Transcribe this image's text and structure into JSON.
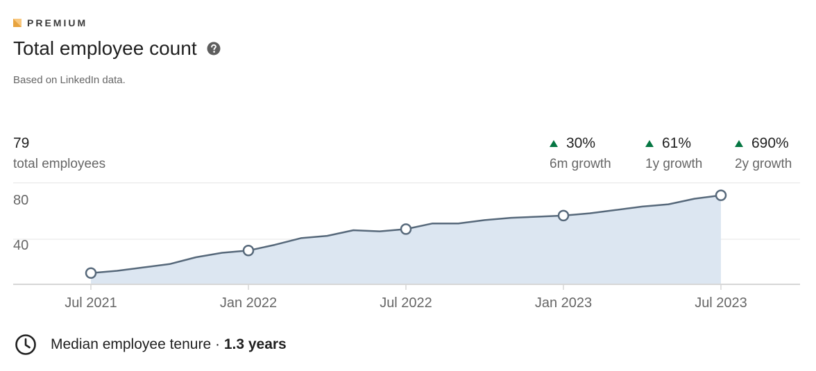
{
  "header": {
    "badge": "PREMIUM",
    "title": "Total employee count",
    "subtitle": "Based on LinkedIn data."
  },
  "summary": {
    "count": "79",
    "count_label": "total employees",
    "growth": [
      {
        "value": "30%",
        "label": "6m growth"
      },
      {
        "value": "61%",
        "label": "1y growth"
      },
      {
        "value": "690%",
        "label": "2y growth"
      }
    ]
  },
  "chart_data": {
    "type": "area",
    "x": [
      "2021-07",
      "2021-08",
      "2021-09",
      "2021-10",
      "2021-11",
      "2021-12",
      "2022-01",
      "2022-02",
      "2022-03",
      "2022-04",
      "2022-05",
      "2022-06",
      "2022-07",
      "2022-08",
      "2022-09",
      "2022-10",
      "2022-11",
      "2022-12",
      "2023-01",
      "2023-02",
      "2023-03",
      "2023-04",
      "2023-05",
      "2023-06",
      "2023-07"
    ],
    "values": [
      10,
      12,
      15,
      18,
      24,
      28,
      30,
      35,
      41,
      43,
      48,
      47,
      49,
      54,
      54,
      57,
      59,
      60,
      61,
      63,
      66,
      69,
      71,
      76,
      79
    ],
    "markers": [
      "2021-07",
      "2022-01",
      "2022-07",
      "2023-01",
      "2023-07"
    ],
    "x_tick_labels": [
      "Jul 2021",
      "Jan 2022",
      "Jul 2022",
      "Jan 2023",
      "Jul 2023"
    ],
    "y_tick_labels": [
      "80",
      "40"
    ],
    "ylim": [
      0,
      90
    ],
    "grid": true,
    "colors": {
      "line": "#56687a",
      "fill": "#dce6f1",
      "grid": "#e4e4e4",
      "axis": "#d6d6d6",
      "tick_text": "#666666"
    }
  },
  "tenure": {
    "label": "Median employee tenure · ",
    "value": "1.3 years"
  },
  "colors": {
    "growth_up": "#057642",
    "premium_gold": "#e7a33e"
  }
}
